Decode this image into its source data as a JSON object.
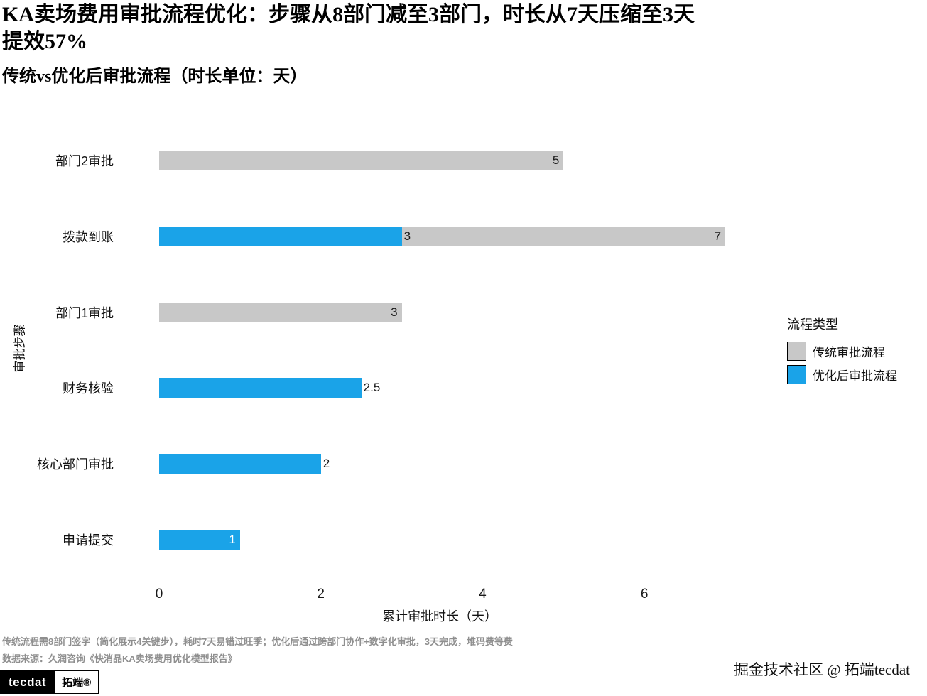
{
  "header": {
    "title_line1": "KA卖场费用审批流程优化：步骤从8部门减至3部门，时长从7天压缩至3天",
    "title_line2": "提效57%",
    "subtitle": "传统vs优化后审批流程（时长单位：天）"
  },
  "chart_data": {
    "type": "bar",
    "orientation": "horizontal",
    "title": "KA卖场费用审批流程优化：步骤从8部门减至3部门，时长从7天压缩至3天提效57%",
    "subtitle": "传统vs优化后审批流程（时长单位：天）",
    "xlabel": "累计审批时长（天）",
    "ylabel": "审批步骤",
    "xlim": [
      0,
      7.5
    ],
    "xticks": [
      0,
      2,
      4,
      6
    ],
    "grid": "off",
    "legend": {
      "title": "流程类型",
      "position": "right",
      "entries": [
        {
          "key": "traditional",
          "label": "传统审批流程",
          "color": "#c8c8c8"
        },
        {
          "key": "optimized",
          "label": "优化后审批流程",
          "color": "#1aa3e8"
        }
      ]
    },
    "categories": [
      "部门2审批",
      "拨款到账",
      "部门1审批",
      "财务核验",
      "核心部门审批",
      "申请提交"
    ],
    "rows": [
      {
        "category": "部门2审批",
        "bars": [
          {
            "series": "traditional",
            "value": 5,
            "label": "5",
            "label_inside": true
          }
        ]
      },
      {
        "category": "拨款到账",
        "bars": [
          {
            "series": "traditional",
            "value": 7,
            "label": "7",
            "label_inside": true
          },
          {
            "series": "optimized",
            "value": 3,
            "label": "3",
            "label_inside": false
          }
        ]
      },
      {
        "category": "部门1审批",
        "bars": [
          {
            "series": "traditional",
            "value": 3,
            "label": "3",
            "label_inside": true
          }
        ]
      },
      {
        "category": "财务核验",
        "bars": [
          {
            "series": "optimized",
            "value": 2.5,
            "label": "2.5",
            "label_inside": false
          }
        ]
      },
      {
        "category": "核心部门审批",
        "bars": [
          {
            "series": "optimized",
            "value": 2,
            "label": "2",
            "label_inside": false
          }
        ]
      },
      {
        "category": "申请提交",
        "bars": [
          {
            "series": "optimized",
            "value": 1,
            "label": "1",
            "label_inside": true,
            "label_color": "#ffffff"
          }
        ]
      }
    ]
  },
  "caption": {
    "line1": "传统流程需8部门签字（简化展示4关键步），耗时7天易错过旺季；优化后通过跨部门协作+数字化审批，3天完成，堆码费等费",
    "line2": "数据来源：久润咨询《快消品KA卖场费用优化模型报告》"
  },
  "footer": {
    "logo_left": "tecdat",
    "logo_right": "拓端®",
    "community": "掘金技术社区 @ 拓端tecdat"
  }
}
